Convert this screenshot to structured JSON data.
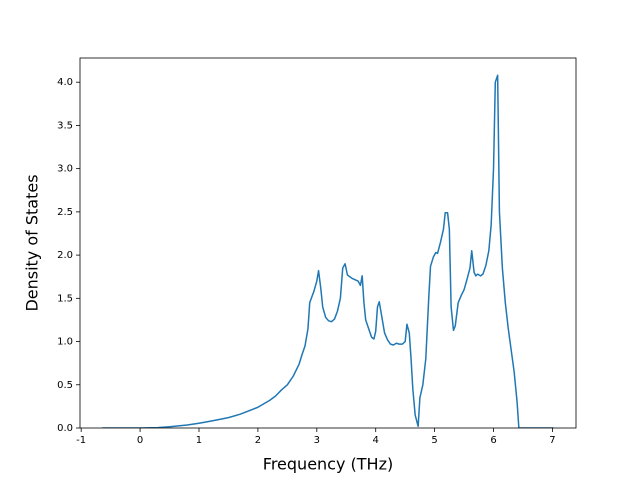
{
  "chart_data": {
    "type": "line",
    "xlabel": "Frequency (THz)",
    "ylabel": "Density of States",
    "color": "#1f77b4",
    "xlim": [
      -1.02,
      7.4
    ],
    "ylim": [
      0,
      4.28
    ],
    "xticks": [
      -1,
      0,
      1,
      2,
      3,
      4,
      5,
      6,
      7
    ],
    "yticks": [
      {
        "value": 0,
        "label": "0.0"
      },
      0.5,
      {
        "value": 1,
        "label": "1.0"
      },
      1.5,
      {
        "value": 2,
        "label": "2.0"
      },
      2.5,
      {
        "value": 3,
        "label": "3.0"
      },
      3.5,
      {
        "value": 4,
        "label": "4.0"
      }
    ],
    "x": [
      -0.64,
      0,
      0.3,
      0.5,
      0.8,
      1.0,
      1.2,
      1.5,
      1.7,
      2.0,
      2.2,
      2.3,
      2.4,
      2.5,
      2.6,
      2.7,
      2.75,
      2.8,
      2.85,
      2.88,
      2.95,
      3.0,
      3.03,
      3.07,
      3.1,
      3.15,
      3.2,
      3.25,
      3.3,
      3.35,
      3.4,
      3.44,
      3.48,
      3.52,
      3.6,
      3.7,
      3.74,
      3.77,
      3.8,
      3.83,
      3.88,
      3.93,
      3.97,
      4.0,
      4.03,
      4.06,
      4.1,
      4.15,
      4.2,
      4.25,
      4.3,
      4.35,
      4.4,
      4.45,
      4.5,
      4.53,
      4.57,
      4.6,
      4.63,
      4.67,
      4.72,
      4.75,
      4.8,
      4.85,
      4.9,
      4.93,
      4.98,
      5.02,
      5.05,
      5.1,
      5.15,
      5.18,
      5.22,
      5.25,
      5.28,
      5.32,
      5.35,
      5.4,
      5.45,
      5.5,
      5.55,
      5.6,
      5.63,
      5.67,
      5.7,
      5.73,
      5.78,
      5.82,
      5.87,
      5.92,
      5.96,
      6.0,
      6.03,
      6.07,
      6.1,
      6.15,
      6.2,
      6.25,
      6.3,
      6.35,
      6.4,
      6.43,
      6.6,
      7.02
    ],
    "values": [
      0,
      0,
      0.005,
      0.015,
      0.035,
      0.055,
      0.08,
      0.12,
      0.16,
      0.24,
      0.32,
      0.37,
      0.44,
      0.5,
      0.6,
      0.74,
      0.85,
      0.95,
      1.15,
      1.45,
      1.58,
      1.7,
      1.82,
      1.6,
      1.4,
      1.28,
      1.24,
      1.23,
      1.26,
      1.35,
      1.5,
      1.85,
      1.9,
      1.77,
      1.73,
      1.7,
      1.65,
      1.76,
      1.45,
      1.25,
      1.15,
      1.05,
      1.03,
      1.12,
      1.4,
      1.46,
      1.3,
      1.1,
      1.02,
      0.97,
      0.96,
      0.98,
      0.97,
      0.97,
      1.0,
      1.2,
      1.1,
      0.8,
      0.45,
      0.15,
      0.02,
      0.35,
      0.5,
      0.8,
      1.5,
      1.87,
      1.98,
      2.03,
      2.02,
      2.15,
      2.3,
      2.49,
      2.49,
      2.3,
      1.4,
      1.13,
      1.18,
      1.45,
      1.53,
      1.6,
      1.72,
      1.85,
      2.05,
      1.8,
      1.76,
      1.78,
      1.76,
      1.78,
      1.88,
      2.05,
      2.35,
      3.0,
      4.0,
      4.08,
      2.5,
      1.85,
      1.45,
      1.15,
      0.9,
      0.65,
      0.3,
      0,
      0,
      0
    ]
  }
}
